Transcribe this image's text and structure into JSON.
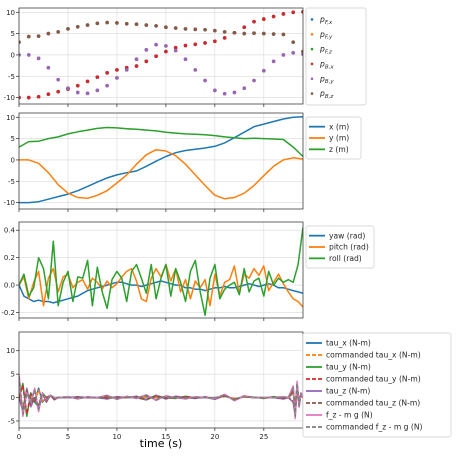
{
  "chart_data": [
    {
      "type": "scatter",
      "xlim": [
        0,
        29
      ],
      "ylim": [
        -11.5,
        11
      ],
      "yticks": [
        "-10",
        "-5",
        "0",
        "5",
        "10"
      ],
      "yticks_num": [
        -10,
        -5,
        0,
        5,
        10
      ],
      "grid": true,
      "legend_position": "right",
      "x": [
        0,
        1,
        2,
        3,
        4,
        5,
        6,
        7,
        8,
        9,
        10,
        11,
        12,
        13,
        14,
        15,
        16,
        17,
        18,
        19,
        20,
        21,
        22,
        23,
        24,
        25,
        26,
        27,
        28,
        29
      ],
      "series": [
        {
          "name": "pF,x",
          "color": "#1f77b4",
          "values": [
            -10,
            -10,
            -9.8,
            -9.2,
            -8.6,
            -8,
            -7.2,
            -6.2,
            -5.2,
            -4.2,
            -3.5,
            -3,
            -2.6,
            -1.5,
            -0.3,
            0.8,
            1.7,
            2.2,
            2.5,
            2.8,
            3.2,
            4,
            5.2,
            6.5,
            7.8,
            8.4,
            9,
            9.6,
            10,
            10.1
          ]
        },
        {
          "name": "pF,y",
          "color": "#ff7f0e",
          "values": [
            0,
            0,
            -0.8,
            -3,
            -5.8,
            -7.8,
            -8.8,
            -9,
            -8.3,
            -7.2,
            -5.4,
            -3.5,
            -1,
            1.2,
            2.4,
            2.1,
            1,
            -1,
            -3.5,
            -6,
            -8.3,
            -9.1,
            -8.8,
            -7.8,
            -6,
            -3.7,
            -1.5,
            0,
            0.5,
            0.2
          ]
        },
        {
          "name": "pF,z",
          "color": "#2ca02c",
          "values": [
            3,
            4.3,
            4.4,
            5,
            5.4,
            6.1,
            6.6,
            7,
            7.4,
            7.6,
            7.5,
            7.3,
            7.2,
            7,
            6.8,
            6.5,
            6.3,
            6.1,
            6,
            5.9,
            5.7,
            5.4,
            5.2,
            5,
            5.1,
            5,
            4.9,
            4.8,
            3,
            0.8
          ]
        },
        {
          "name": "pB,x",
          "color": "#d62728",
          "values": [
            -10,
            -10,
            -9.8,
            -9.2,
            -8.6,
            -8,
            -7.2,
            -6.2,
            -5.2,
            -4.2,
            -3.5,
            -3,
            -2.6,
            -1.5,
            -0.3,
            0.8,
            1.7,
            2.2,
            2.5,
            2.8,
            3.2,
            4,
            5.2,
            6.5,
            7.8,
            8.4,
            9,
            9.6,
            10,
            10.1
          ]
        },
        {
          "name": "pB,y",
          "color": "#9467bd",
          "values": [
            0,
            0,
            -0.8,
            -3,
            -5.8,
            -7.8,
            -8.8,
            -9,
            -8.3,
            -7.2,
            -5.4,
            -3.5,
            -1,
            1.2,
            2.4,
            2.1,
            1,
            -1,
            -3.5,
            -6,
            -8.3,
            -9.1,
            -8.8,
            -7.8,
            -6,
            -3.7,
            -1.5,
            0,
            0.5,
            0.2
          ]
        },
        {
          "name": "pB,z",
          "color": "#8c564b",
          "values": [
            3,
            4.3,
            4.4,
            5,
            5.4,
            6.1,
            6.6,
            7,
            7.4,
            7.6,
            7.5,
            7.3,
            7.2,
            7,
            6.8,
            6.5,
            6.3,
            6.1,
            6,
            5.9,
            5.7,
            5.4,
            5.2,
            5,
            5.1,
            5,
            4.9,
            4.8,
            3,
            0.8
          ]
        }
      ]
    },
    {
      "type": "line",
      "xlim": [
        0,
        29
      ],
      "ylim": [
        -11.5,
        11
      ],
      "yticks": [
        "-10",
        "-5",
        "0",
        "5",
        "10"
      ],
      "yticks_num": [
        -10,
        -5,
        0,
        5,
        10
      ],
      "grid": true,
      "legend_position": "right",
      "x": [
        0,
        1,
        2,
        3,
        4,
        5,
        6,
        7,
        8,
        9,
        10,
        11,
        12,
        13,
        14,
        15,
        16,
        17,
        18,
        19,
        20,
        21,
        22,
        23,
        24,
        25,
        26,
        27,
        28,
        29
      ],
      "series": [
        {
          "name": "x (m)",
          "color": "#1f77b4",
          "values": [
            -10,
            -10,
            -9.8,
            -9.2,
            -8.6,
            -8,
            -7.2,
            -6.2,
            -5.2,
            -4.2,
            -3.5,
            -3,
            -2.6,
            -1.5,
            -0.3,
            0.8,
            1.7,
            2.2,
            2.5,
            2.8,
            3.2,
            4,
            5.2,
            6.5,
            7.8,
            8.4,
            9,
            9.6,
            10,
            10.1
          ]
        },
        {
          "name": "y (m)",
          "color": "#ff7f0e",
          "values": [
            0,
            0,
            -0.8,
            -3,
            -5.8,
            -7.8,
            -8.8,
            -9,
            -8.3,
            -7.2,
            -5.4,
            -3.5,
            -1,
            1.2,
            2.4,
            2.1,
            1,
            -1,
            -3.5,
            -6,
            -8.3,
            -9.1,
            -8.8,
            -7.8,
            -6,
            -3.7,
            -1.5,
            0,
            0.5,
            0.2
          ]
        },
        {
          "name": "z (m)",
          "color": "#2ca02c",
          "values": [
            3,
            4.3,
            4.4,
            5,
            5.4,
            6.1,
            6.6,
            7,
            7.4,
            7.6,
            7.5,
            7.3,
            7.2,
            7,
            6.8,
            6.5,
            6.3,
            6.1,
            6,
            5.9,
            5.7,
            5.4,
            5.2,
            5,
            5.1,
            5,
            4.9,
            4.8,
            3,
            0.8
          ]
        }
      ]
    },
    {
      "type": "line",
      "xlim": [
        0,
        29
      ],
      "ylim": [
        -0.24,
        0.46
      ],
      "yticks": [
        "-0.2",
        "0.0",
        "0.2",
        "0.4"
      ],
      "yticks_num": [
        -0.2,
        0,
        0.2,
        0.4
      ],
      "grid": true,
      "legend_position": "right",
      "x": [
        0,
        0.5,
        1,
        1.5,
        2,
        2.5,
        3,
        3.5,
        4,
        4.5,
        5,
        5.5,
        6,
        6.5,
        7,
        7.5,
        8,
        8.5,
        9,
        9.5,
        10,
        10.5,
        11,
        11.5,
        12,
        12.5,
        13,
        13.5,
        14,
        14.5,
        15,
        15.5,
        16,
        16.5,
        17,
        17.5,
        18,
        18.5,
        19,
        19.5,
        20,
        20.5,
        21,
        21.5,
        22,
        22.5,
        23,
        23.5,
        24,
        24.5,
        25,
        25.5,
        26,
        26.5,
        27,
        27.5,
        28,
        28.5,
        29
      ],
      "series": [
        {
          "name": "yaw (rad)",
          "color": "#1f77b4",
          "values": [
            0,
            -0.08,
            -0.1,
            -0.12,
            -0.11,
            -0.12,
            -0.12,
            -0.13,
            -0.12,
            -0.11,
            -0.1,
            -0.09,
            -0.08,
            -0.06,
            -0.04,
            -0.03,
            -0.02,
            -0.01,
            0,
            0.01,
            0.02,
            0.02,
            0.01,
            0,
            0,
            -0.01,
            0,
            0.01,
            0.02,
            0.03,
            0.02,
            0.01,
            0,
            0,
            -0.02,
            -0.02,
            -0.03,
            -0.03,
            -0.04,
            -0.03,
            -0.02,
            -0.02,
            -0.01,
            -0.02,
            -0.02,
            -0.01,
            0,
            0.01,
            0,
            -0.01,
            0,
            0.01,
            0,
            -0.02,
            -0.02,
            -0.03,
            -0.04,
            -0.05,
            -0.06
          ]
        },
        {
          "name": "pitch (rad)",
          "color": "#ff7f0e",
          "values": [
            0,
            0.06,
            -0.1,
            0.02,
            0.1,
            -0.15,
            0.05,
            0.12,
            -0.05,
            0.06,
            0.08,
            -0.02,
            0.02,
            0.04,
            -0.03,
            0.05,
            0.02,
            -0.03,
            0.03,
            -0.02,
            0.01,
            0.06,
            0.1,
            0.12,
            0.03,
            -0.1,
            -0.12,
            0.05,
            0.12,
            0.06,
            0.15,
            0.03,
            0.12,
            -0.05,
            0.04,
            -0.1,
            0.03,
            -0.02,
            0.04,
            -0.15,
            0.08,
            -0.08,
            0.02,
            0.04,
            0.14,
            -0.06,
            0.08,
            0.05,
            0.12,
            0.07,
            0.14,
            -0.04,
            0.02,
            0.08,
            0.01,
            -0.05,
            -0.1,
            -0.12,
            -0.16
          ]
        },
        {
          "name": "roll (rad)",
          "color": "#2ca02c",
          "values": [
            0,
            0.08,
            -0.08,
            -0.02,
            0.2,
            0.12,
            -0.1,
            0.32,
            -0.15,
            0.02,
            0.1,
            -0.12,
            0.06,
            0.05,
            0.18,
            -0.15,
            0.13,
            -0.05,
            -0.17,
            0.04,
            0.1,
            0.05,
            -0.12,
            0.1,
            0.15,
            0.05,
            -0.06,
            0.15,
            -0.1,
            0.05,
            0.15,
            -0.08,
            0.12,
            0.02,
            -0.12,
            0.1,
            0.18,
            -0.05,
            -0.22,
            0.05,
            0.15,
            -0.1,
            -0.03,
            0,
            0.02,
            -0.07,
            0.12,
            -0.05,
            0.03,
            0.05,
            -0.08,
            0.1,
            0,
            0.05,
            0.02,
            0.04,
            0.02,
            0.15,
            0.42
          ]
        }
      ]
    },
    {
      "type": "line",
      "xlim": [
        0,
        29
      ],
      "ylim": [
        -6.5,
        14
      ],
      "xticks": [
        "0",
        "5",
        "10",
        "15",
        "20",
        "25"
      ],
      "xticks_num": [
        0,
        5,
        10,
        15,
        20,
        25
      ],
      "yticks": [
        "-5",
        "0",
        "5",
        "10"
      ],
      "yticks_num": [
        -5,
        0,
        5,
        10
      ],
      "xlabel": "time (s)",
      "grid": true,
      "legend_position": "right",
      "x": [
        0,
        0.4,
        0.8,
        1.2,
        1.6,
        2,
        2.4,
        2.8,
        3.2,
        3.6,
        4,
        5,
        6,
        7,
        8,
        9,
        10,
        11,
        12,
        13,
        14,
        15,
        16,
        17,
        18,
        19,
        20,
        21,
        22,
        23,
        24,
        25,
        26,
        27,
        27.5,
        28,
        28.2,
        28.4,
        28.6,
        28.8,
        29
      ],
      "series": [
        {
          "name": "tau_x (N-m)",
          "color": "#1f77b4",
          "style": "solid",
          "values": [
            0,
            -2,
            1,
            0,
            -1,
            2,
            -1,
            0,
            0.4,
            -0.2,
            0,
            0,
            0,
            0,
            0,
            0.1,
            0,
            0,
            0,
            0.2,
            0,
            0,
            0,
            0.1,
            0,
            0,
            0,
            0.3,
            -0.3,
            0.2,
            0,
            0,
            0,
            0,
            0,
            1,
            -1,
            2,
            -0.5,
            0.5,
            0
          ]
        },
        {
          "name": "commanded tau_x (N-m)",
          "color": "#ff7f0e",
          "style": "dashed",
          "values": [
            0,
            -1.5,
            0.8,
            0,
            -0.8,
            1.6,
            -0.8,
            0,
            0.3,
            -0.1,
            0,
            0,
            0,
            0,
            0,
            0,
            0,
            0,
            0,
            0.1,
            0,
            0,
            0,
            0,
            0,
            0,
            0,
            0.2,
            -0.2,
            0.1,
            0,
            0,
            0,
            0,
            0,
            0.8,
            -0.8,
            1.5,
            -0.4,
            0.4,
            0
          ]
        },
        {
          "name": "tau_y (N-m)",
          "color": "#2ca02c",
          "style": "solid",
          "values": [
            0,
            3,
            -4,
            1,
            -1,
            -2,
            1,
            0,
            0.5,
            0,
            0,
            0.2,
            -0.2,
            0.1,
            -0.1,
            0.3,
            -0.3,
            0.2,
            0,
            -0.5,
            0.4,
            0,
            -0.2,
            0.3,
            -0.1,
            0,
            -0.3,
            0.6,
            -0.5,
            0.3,
            0.1,
            -0.2,
            0.2,
            0,
            0,
            2,
            -3,
            3,
            -1,
            0.5,
            0
          ]
        },
        {
          "name": "commanded tau_y (N-m)",
          "color": "#d62728",
          "style": "dashed",
          "values": [
            0,
            2.5,
            -3.5,
            0.8,
            -0.8,
            -1.5,
            0.8,
            0,
            0.4,
            0,
            0,
            0.1,
            -0.1,
            0,
            0,
            0.2,
            -0.2,
            0.1,
            0,
            -0.4,
            0.3,
            0,
            -0.1,
            0.2,
            0,
            0,
            -0.2,
            0.5,
            -0.4,
            0.2,
            0,
            -0.1,
            0.1,
            0,
            0,
            1.5,
            -2.5,
            2.5,
            -0.8,
            0.4,
            0
          ]
        },
        {
          "name": "tau_z (N-m)",
          "color": "#9467bd",
          "style": "solid",
          "values": [
            0,
            -3,
            2,
            -2,
            0,
            -2.5,
            1,
            -1,
            0.5,
            -0.5,
            0,
            0,
            0.2,
            0,
            0,
            -0.3,
            0.2,
            0,
            0.3,
            -0.5,
            0.5,
            -0.3,
            0.3,
            0,
            -0.2,
            0.2,
            -0.4,
            0.5,
            -0.5,
            0.3,
            0,
            0,
            0,
            -0.3,
            0,
            -1,
            -4,
            2,
            -2,
            1,
            0
          ]
        },
        {
          "name": "commanded tau_z (N-m)",
          "color": "#8c564b",
          "style": "dashed",
          "values": [
            0,
            -2.5,
            1.5,
            -1.5,
            0,
            -2,
            0.8,
            -0.8,
            0.4,
            -0.4,
            0,
            0,
            0.1,
            0,
            0,
            -0.2,
            0.1,
            0,
            0.2,
            -0.4,
            0.4,
            -0.2,
            0.2,
            0,
            -0.1,
            0.1,
            -0.3,
            0.4,
            -0.4,
            0.2,
            0,
            0,
            0,
            -0.2,
            0,
            -0.8,
            -3.5,
            1.5,
            -1.5,
            0.8,
            0
          ]
        },
        {
          "name": "f_z - m g (N)",
          "color": "#e377c2",
          "style": "solid",
          "values": [
            5,
            -4,
            1,
            -1,
            2,
            -3,
            1,
            -0.5,
            0.5,
            0,
            0,
            0.2,
            -0.3,
            0.2,
            0,
            0.5,
            -0.4,
            0.3,
            -0.2,
            0.6,
            -0.6,
            0.4,
            0,
            -0.3,
            0.2,
            0,
            -0.2,
            0.7,
            -0.7,
            0.4,
            0,
            0,
            0,
            0.2,
            0,
            2.5,
            -4.5,
            3.5,
            -2,
            1,
            0
          ]
        },
        {
          "name": "commanded f_z - m g (N)",
          "color": "#7f7f7f",
          "style": "dashed",
          "values": [
            4.5,
            -3.5,
            0.8,
            -0.8,
            1.5,
            -2.5,
            0.8,
            -0.4,
            0.4,
            0,
            0,
            0.1,
            -0.2,
            0.1,
            0,
            0.4,
            -0.3,
            0.2,
            -0.1,
            0.5,
            -0.5,
            0.3,
            0,
            -0.2,
            0.1,
            0,
            -0.1,
            0.6,
            -0.6,
            0.3,
            0,
            0,
            0,
            0.1,
            0,
            2,
            -4,
            3,
            -1.8,
            0.8,
            0
          ]
        }
      ]
    }
  ],
  "legend_items": [
    [
      "p_F,x",
      "p_F,y",
      "p_F,z",
      "p_B,x",
      "p_B,y",
      "p_B,z"
    ],
    [
      "x (m)",
      "y (m)",
      "z (m)"
    ],
    [
      "yaw (rad)",
      "pitch (rad)",
      "roll (rad)"
    ],
    [
      "tau_x (N-m)",
      "commanded tau_x (N-m)",
      "tau_y (N-m)",
      "commanded tau_y (N-m)",
      "tau_z (N-m)",
      "commanded tau_z (N-m)",
      "f_z - m g (N)",
      "commanded f_z - m g (N)"
    ]
  ]
}
